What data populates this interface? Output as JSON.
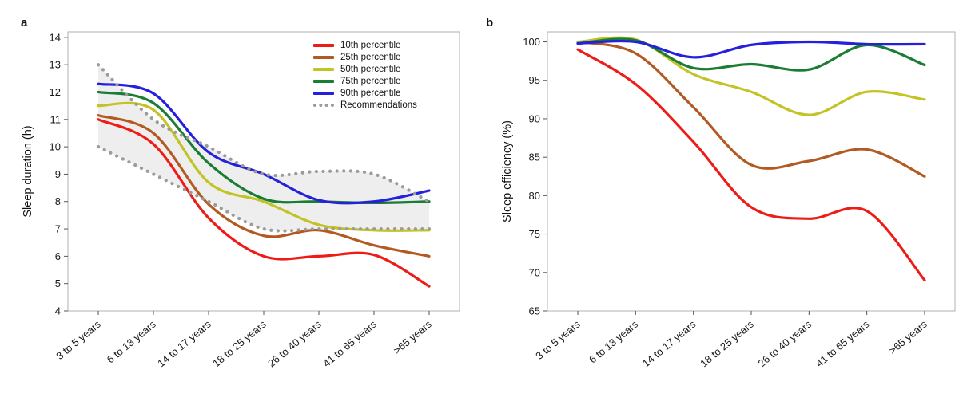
{
  "panels": {
    "a": {
      "label": "a"
    },
    "b": {
      "label": "b"
    }
  },
  "chart_data": [
    {
      "type": "line",
      "panel": "a",
      "title": "",
      "xlabel": "",
      "ylabel": "Sleep duration (h)",
      "categories": [
        "3 to 5 years",
        "6 to 13 years",
        "14 to 17 years",
        "18 to 25 years",
        "26 to 40 years",
        "41 to 65 years",
        ">65 years"
      ],
      "ylim": [
        4,
        14.2
      ],
      "yticks": [
        4,
        5,
        6,
        7,
        8,
        9,
        10,
        11,
        12,
        13,
        14
      ],
      "grid": false,
      "legend_position": "top-right",
      "series": [
        {
          "name": "10th percentile",
          "color": "#ee1c16",
          "values": [
            11.0,
            10.1,
            7.4,
            6.0,
            6.0,
            6.05,
            4.9
          ]
        },
        {
          "name": "25th percentile",
          "color": "#b25a21",
          "values": [
            11.15,
            10.5,
            7.9,
            6.75,
            6.95,
            6.4,
            6.0
          ]
        },
        {
          "name": "50th percentile",
          "color": "#c2c324",
          "values": [
            11.5,
            11.35,
            8.7,
            8.0,
            7.15,
            6.95,
            6.95
          ]
        },
        {
          "name": "75th percentile",
          "color": "#1b7d33",
          "values": [
            12.0,
            11.6,
            9.4,
            8.1,
            8.0,
            7.95,
            8.0
          ]
        },
        {
          "name": "90th percentile",
          "color": "#2420dd",
          "values": [
            12.3,
            11.95,
            9.8,
            9.0,
            8.05,
            8.0,
            8.4
          ]
        }
      ],
      "recommendations": {
        "name": "Recommendations",
        "color": "#9b9b9b",
        "style": "dotted",
        "band_fill": "#ececec",
        "upper": [
          13,
          11,
          10,
          9,
          9.1,
          9,
          8
        ],
        "lower": [
          10,
          9,
          8,
          7,
          7,
          7,
          7
        ]
      }
    },
    {
      "type": "line",
      "panel": "b",
      "title": "",
      "xlabel": "",
      "ylabel": "Sleep efficiency (%)",
      "categories": [
        "3 to 5 years",
        "6 to 13 years",
        "14 to 17 years",
        "18 to 25 years",
        "26 to 40 years",
        "41 to 65 years",
        ">65 years"
      ],
      "ylim": [
        65,
        101.3
      ],
      "yticks": [
        65,
        70,
        75,
        80,
        85,
        90,
        95,
        100
      ],
      "grid": false,
      "legend_position": "none",
      "series": [
        {
          "name": "10th percentile",
          "color": "#ee1c16",
          "values": [
            99,
            94.5,
            87,
            78.5,
            77,
            78,
            69
          ]
        },
        {
          "name": "25th percentile",
          "color": "#b25a21",
          "values": [
            100,
            98.5,
            91.5,
            84,
            84.5,
            86,
            82.5
          ]
        },
        {
          "name": "50th percentile",
          "color": "#c2c324",
          "values": [
            100,
            100.3,
            95.8,
            93.5,
            90.5,
            93.5,
            92.5
          ]
        },
        {
          "name": "75th percentile",
          "color": "#1b7d33",
          "values": [
            99.8,
            100.2,
            96.6,
            97.1,
            96.4,
            99.6,
            97
          ]
        },
        {
          "name": "90th percentile",
          "color": "#2420dd",
          "values": [
            99.8,
            100,
            98,
            99.6,
            100,
            99.7,
            99.7
          ]
        }
      ]
    }
  ]
}
